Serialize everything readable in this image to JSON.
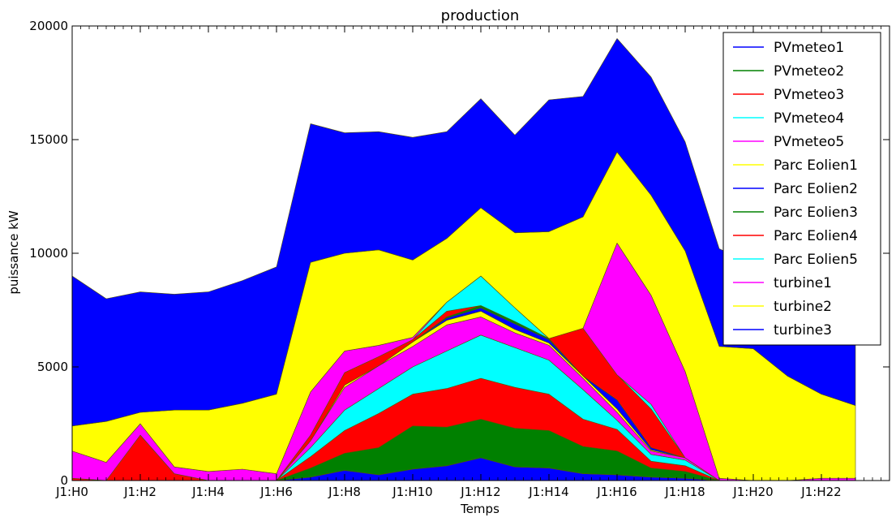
{
  "chart_data": {
    "type": "area",
    "title": "production",
    "xlabel": "Temps",
    "ylabel": "puissance kW",
    "xlim": [
      0,
      24
    ],
    "ylim": [
      0,
      20000
    ],
    "x_ticks": [
      {
        "value": 0,
        "label": "J1:H0"
      },
      {
        "value": 2,
        "label": "J1:H2"
      },
      {
        "value": 4,
        "label": "J1:H4"
      },
      {
        "value": 6,
        "label": "J1:H6"
      },
      {
        "value": 8,
        "label": "J1:H8"
      },
      {
        "value": 10,
        "label": "J1:H10"
      },
      {
        "value": 12,
        "label": "J1:H12"
      },
      {
        "value": 14,
        "label": "J1:H14"
      },
      {
        "value": 16,
        "label": "J1:H16"
      },
      {
        "value": 18,
        "label": "J1:H18"
      },
      {
        "value": 20,
        "label": "J1:H20"
      },
      {
        "value": 22,
        "label": "J1:H22"
      }
    ],
    "y_ticks": [
      {
        "value": 0,
        "label": "0"
      },
      {
        "value": 5000,
        "label": "5000"
      },
      {
        "value": 10000,
        "label": "10000"
      },
      {
        "value": 15000,
        "label": "15000"
      },
      {
        "value": 20000,
        "label": "20000"
      }
    ],
    "legend_position": "top-right",
    "grid": false,
    "stacked": true,
    "x": [
      0,
      1,
      2,
      3,
      4,
      5,
      6,
      7,
      8,
      9,
      10,
      11,
      12,
      13,
      14,
      15,
      16,
      17,
      18,
      19,
      20,
      21,
      22,
      23
    ],
    "series": [
      {
        "name": "PVmeteo1",
        "color": "#0000ff",
        "values": [
          0,
          0,
          0,
          0,
          0,
          0,
          0,
          150,
          450,
          250,
          500,
          650,
          1000,
          600,
          550,
          300,
          250,
          150,
          100,
          0,
          0,
          0,
          0,
          0
        ]
      },
      {
        "name": "PVmeteo2",
        "color": "#008000",
        "values": [
          0,
          0,
          0,
          0,
          0,
          0,
          0,
          400,
          750,
          1200,
          1900,
          1700,
          1700,
          1700,
          1650,
          1200,
          1050,
          400,
          300,
          0,
          0,
          0,
          0,
          0
        ]
      },
      {
        "name": "PVmeteo3",
        "color": "#ff0000",
        "values": [
          0,
          0,
          0,
          0,
          0,
          0,
          0,
          500,
          1000,
          1500,
          1400,
          1700,
          1800,
          1800,
          1600,
          1200,
          950,
          300,
          250,
          0,
          0,
          0,
          0,
          0
        ]
      },
      {
        "name": "PVmeteo4",
        "color": "#00ffff",
        "values": [
          0,
          0,
          0,
          0,
          0,
          0,
          0,
          400,
          900,
          1100,
          1200,
          1650,
          1900,
          1750,
          1500,
          1300,
          400,
          300,
          250,
          0,
          0,
          0,
          0,
          0
        ]
      },
      {
        "name": "PVmeteo5",
        "color": "#ff00ff",
        "values": [
          0,
          0,
          0,
          0,
          0,
          0,
          0,
          300,
          1000,
          1000,
          900,
          1150,
          800,
          650,
          650,
          500,
          350,
          150,
          100,
          0,
          0,
          0,
          0,
          0
        ]
      },
      {
        "name": "Parc Eolien1",
        "color": "#ffff00",
        "values": [
          0,
          0,
          0,
          0,
          0,
          0,
          0,
          0,
          100,
          0,
          200,
          200,
          250,
          150,
          100,
          100,
          150,
          50,
          0,
          0,
          0,
          0,
          0,
          0
        ]
      },
      {
        "name": "Parc Eolien2",
        "color": "#0000ff",
        "values": [
          0,
          0,
          0,
          0,
          0,
          0,
          0,
          0,
          0,
          0,
          0,
          100,
          150,
          250,
          150,
          0,
          400,
          100,
          0,
          0,
          0,
          0,
          0,
          0
        ]
      },
      {
        "name": "Parc Eolien3",
        "color": "#008000",
        "values": [
          0,
          0,
          0,
          0,
          0,
          0,
          0,
          0,
          0,
          0,
          0,
          50,
          100,
          100,
          50,
          0,
          0,
          0,
          0,
          0,
          0,
          0,
          0,
          0
        ]
      },
      {
        "name": "Parc Eolien4",
        "color": "#ff0000",
        "values": [
          100,
          0,
          2000,
          300,
          0,
          0,
          0,
          250,
          550,
          400,
          100,
          250,
          0,
          0,
          0,
          2100,
          1100,
          1700,
          0,
          0,
          0,
          0,
          0,
          0
        ]
      },
      {
        "name": "Parc Eolien5",
        "color": "#00ffff",
        "values": [
          0,
          0,
          0,
          0,
          0,
          0,
          0,
          0,
          0,
          0,
          0,
          400,
          1300,
          600,
          0,
          0,
          0,
          200,
          0,
          0,
          0,
          0,
          0,
          0
        ]
      },
      {
        "name": "turbine1",
        "color": "#ff00ff",
        "values": [
          1200,
          800,
          500,
          300,
          400,
          500,
          300,
          1900,
          950,
          500,
          100,
          0,
          0,
          0,
          0,
          0,
          5800,
          4800,
          3800,
          100,
          0,
          0,
          100,
          100
        ]
      },
      {
        "name": "turbine2",
        "color": "#ffff00",
        "values": [
          1100,
          1800,
          500,
          2500,
          2700,
          2900,
          3500,
          5700,
          4300,
          4200,
          3400,
          2800,
          3000,
          3300,
          4700,
          4900,
          4000,
          4400,
          5300,
          5800,
          5800,
          4600,
          3700,
          3200
        ]
      },
      {
        "name": "turbine3",
        "color": "#0000ff",
        "values": [
          6600,
          5400,
          5300,
          5100,
          5200,
          5400,
          5600,
          6100,
          5300,
          5200,
          5400,
          4700,
          4800,
          4300,
          5800,
          5300,
          5000,
          5200,
          4800,
          4300,
          3700,
          3500,
          3900,
          4200
        ]
      }
    ]
  }
}
